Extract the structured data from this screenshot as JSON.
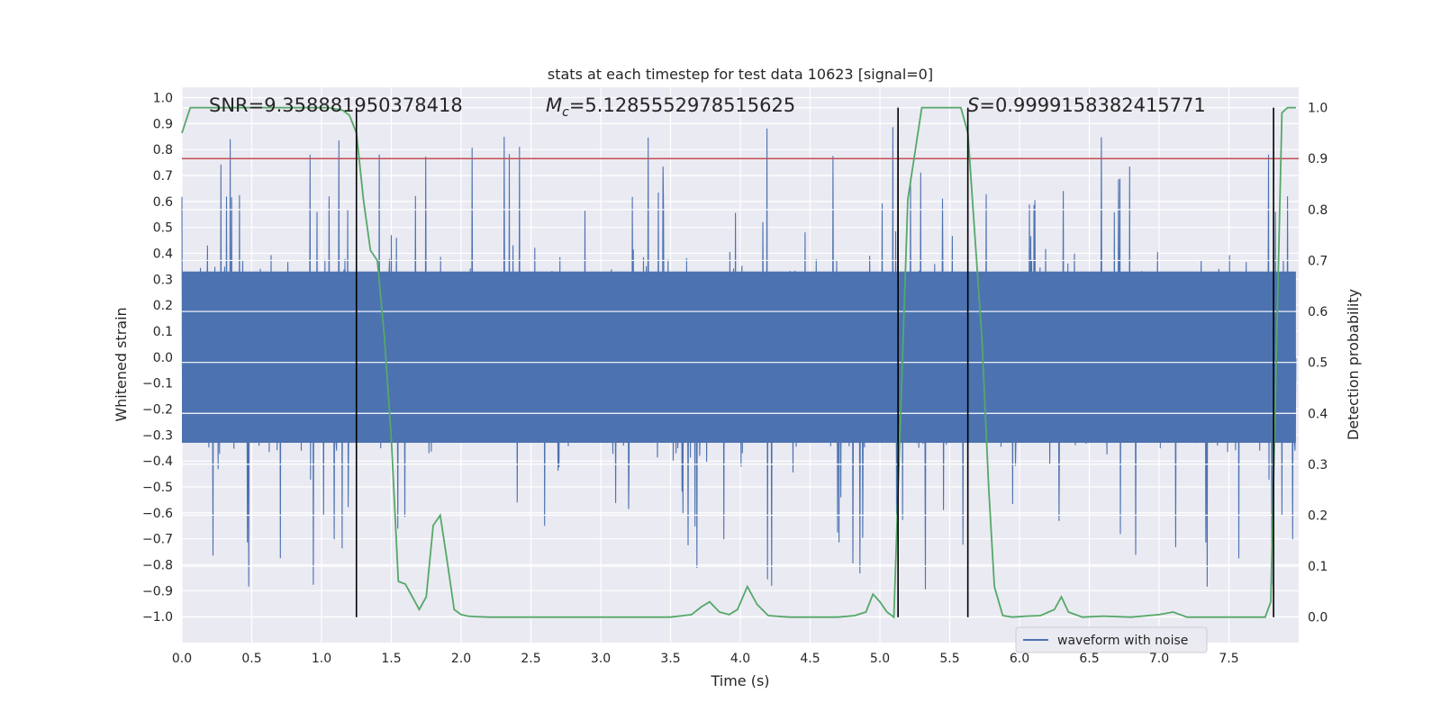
{
  "chart_data": {
    "type": "line",
    "title": "stats at each timestep for test data 10623 [signal=0]",
    "xlabel": "Time (s)",
    "ylabel_left": "Whitened strain",
    "ylabel_right": "Detection probability",
    "xlim": [
      0.0,
      8.0
    ],
    "ylim_left": [
      -1.1,
      1.04
    ],
    "ylim_right": [
      -0.05,
      1.04
    ],
    "x_ticks": [
      "0.0",
      "0.5",
      "1.0",
      "1.5",
      "2.0",
      "2.5",
      "3.0",
      "3.5",
      "4.0",
      "4.5",
      "5.0",
      "5.5",
      "6.0",
      "6.5",
      "7.0",
      "7.5"
    ],
    "y_ticks_left": [
      "1.0",
      "0.9",
      "0.8",
      "0.7",
      "0.6",
      "0.5",
      "0.4",
      "0.3",
      "0.2",
      "0.1",
      "0.0",
      "−0.1",
      "−0.2",
      "−0.3",
      "−0.4",
      "−0.5",
      "−0.6",
      "−0.7",
      "−0.8",
      "−0.9",
      "−1.0"
    ],
    "y_ticks_right": [
      "1.0",
      "0.9",
      "0.8",
      "0.7",
      "0.6",
      "0.5",
      "0.4",
      "0.3",
      "0.2",
      "0.1",
      "0.0"
    ],
    "threshold": 0.9,
    "vlines": [
      1.25,
      5.13,
      5.63,
      7.82
    ],
    "annotations": {
      "snr": "SNR=9.358881950378418",
      "mc_symbol": "M",
      "mc_sub": "c",
      "mc_value": "=5.1285552978515625",
      "s_symbol": "S",
      "s_value": "=0.9999158382415771"
    },
    "legend": [
      "waveform with noise"
    ],
    "series": [
      {
        "name": "waveform with noise",
        "axis": "left",
        "color": "#4c72b0",
        "note": "dense noise, core band approx ±0.33, peaks up to ±0.9"
      },
      {
        "name": "detection probability",
        "axis": "right",
        "color": "#55a868",
        "x": [
          0.0,
          0.06,
          0.15,
          0.3,
          0.5,
          0.7,
          0.9,
          1.05,
          1.15,
          1.2,
          1.25,
          1.3,
          1.35,
          1.4,
          1.45,
          1.5,
          1.55,
          1.6,
          1.65,
          1.7,
          1.75,
          1.8,
          1.85,
          1.9,
          1.95,
          2.0,
          2.05,
          2.1,
          2.2,
          2.3,
          2.5,
          3.0,
          3.5,
          3.65,
          3.72,
          3.78,
          3.85,
          3.92,
          3.98,
          4.05,
          4.12,
          4.2,
          4.35,
          4.5,
          4.7,
          4.82,
          4.9,
          4.95,
          5.0,
          5.05,
          5.1,
          5.2,
          5.3,
          5.5,
          5.58,
          5.63,
          5.68,
          5.73,
          5.78,
          5.82,
          5.88,
          5.95,
          6.05,
          6.15,
          6.25,
          6.3,
          6.35,
          6.45,
          6.6,
          6.8,
          7.0,
          7.1,
          7.2,
          7.4,
          7.6,
          7.76,
          7.8,
          7.83,
          7.88,
          7.92,
          7.98
        ],
        "values": [
          0.95,
          1.0,
          1.0,
          1.0,
          1.0,
          1.0,
          1.0,
          1.0,
          0.995,
          0.985,
          0.95,
          0.82,
          0.72,
          0.7,
          0.55,
          0.35,
          0.07,
          0.065,
          0.04,
          0.015,
          0.04,
          0.18,
          0.2,
          0.11,
          0.015,
          0.005,
          0.002,
          0.001,
          0.0,
          0.0,
          0.0,
          0.0,
          0.0,
          0.005,
          0.02,
          0.03,
          0.01,
          0.005,
          0.015,
          0.06,
          0.025,
          0.003,
          0.0,
          0.0,
          0.0,
          0.003,
          0.01,
          0.045,
          0.03,
          0.01,
          0.0,
          0.82,
          1.0,
          1.0,
          1.0,
          0.95,
          0.75,
          0.55,
          0.25,
          0.06,
          0.003,
          0.0,
          0.002,
          0.003,
          0.015,
          0.04,
          0.01,
          0.0,
          0.002,
          0.0,
          0.005,
          0.01,
          0.0,
          0.0,
          0.0,
          0.0,
          0.03,
          0.4,
          0.99,
          1.0,
          1.0
        ]
      }
    ]
  }
}
